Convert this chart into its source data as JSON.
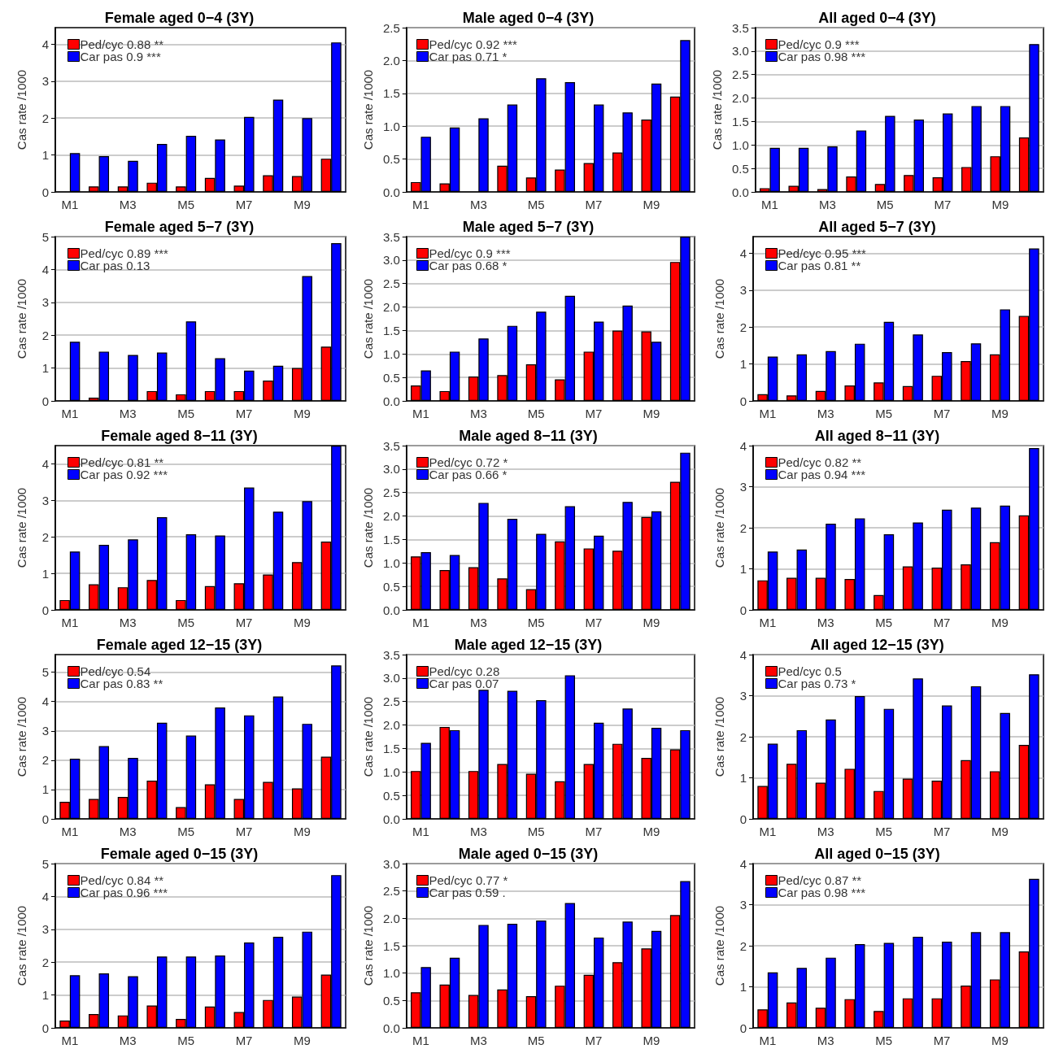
{
  "chart_data": [
    {
      "type": "bar",
      "title": "Female aged 0−4 (3Y)",
      "ylabel": "Cas rate /1000",
      "categories": [
        "M1",
        null,
        "M3",
        null,
        "M5",
        null,
        "M7",
        null,
        "M9",
        null
      ],
      "ylim": [
        0,
        4.45
      ],
      "yticks": [
        0,
        1,
        2,
        3,
        4
      ],
      "grid": "y",
      "legend": "top left",
      "series": [
        {
          "name": "Ped/cyc 0.88 **",
          "color": "#ff0000",
          "values": [
            null,
            0.15,
            0.15,
            0.25,
            0.15,
            0.38,
            0.17,
            0.45,
            0.43,
            0.9
          ]
        },
        {
          "name": "Car pas 0.9 ***",
          "color": "#0000ff",
          "values": [
            1.05,
            0.97,
            0.84,
            1.3,
            1.52,
            1.42,
            2.03,
            2.5,
            2.0,
            4.05
          ]
        }
      ]
    },
    {
      "type": "bar",
      "title": "Male aged 0−4 (3Y)",
      "ylabel": "Cas rate /1000",
      "categories": [
        "M1",
        null,
        "M3",
        null,
        "M5",
        null,
        "M7",
        null,
        "M9",
        null
      ],
      "ylim": [
        0,
        2.5
      ],
      "yticks": [
        {
          "value": 0,
          "label": "0.0"
        },
        0.5,
        {
          "value": 1,
          "label": "1.0"
        },
        1.5,
        {
          "value": 2,
          "label": "2.0"
        },
        2.5
      ],
      "grid": "y",
      "legend": "top left",
      "series": [
        {
          "name": "Ped/cyc 0.92 ***",
          "color": "#ff0000",
          "values": [
            0.15,
            0.13,
            null,
            0.4,
            0.22,
            0.34,
            0.44,
            0.6,
            1.1,
            1.45
          ]
        },
        {
          "name": "Car pas 0.71 *",
          "color": "#0000ff",
          "values": [
            0.84,
            0.98,
            1.12,
            1.33,
            1.73,
            1.67,
            1.33,
            1.21,
            1.65,
            2.31
          ]
        }
      ]
    },
    {
      "type": "bar",
      "title": "All aged 0−4 (3Y)",
      "ylabel": "Cas rate /1000",
      "categories": [
        "M1",
        null,
        "M3",
        null,
        "M5",
        null,
        "M7",
        null,
        "M9",
        null
      ],
      "ylim": [
        0,
        3.5
      ],
      "yticks": [
        {
          "value": 0,
          "label": "0.0"
        },
        0.5,
        {
          "value": 1,
          "label": "1.0"
        },
        1.5,
        {
          "value": 2,
          "label": "2.0"
        },
        2.5,
        {
          "value": 3,
          "label": "3.0"
        },
        3.5
      ],
      "grid": "y",
      "legend": "top left",
      "series": [
        {
          "name": "Ped/cyc 0.9 ***",
          "color": "#ff0000",
          "values": [
            0.08,
            0.13,
            0.06,
            0.33,
            0.17,
            0.36,
            0.31,
            0.53,
            0.76,
            1.16
          ]
        },
        {
          "name": "Car pas 0.98 ***",
          "color": "#0000ff",
          "values": [
            0.94,
            0.94,
            0.97,
            1.31,
            1.62,
            1.54,
            1.67,
            1.83,
            1.83,
            3.15
          ]
        }
      ]
    },
    {
      "type": "bar",
      "title": "Female aged 5−7 (3Y)",
      "ylabel": "Cas rate /1000",
      "categories": [
        "M1",
        null,
        "M3",
        null,
        "M5",
        null,
        "M7",
        null,
        "M9",
        null
      ],
      "ylim": [
        0,
        5
      ],
      "yticks": [
        0,
        1,
        2,
        3,
        4,
        5
      ],
      "grid": "y",
      "legend": "top left",
      "series": [
        {
          "name": "Ped/cyc 0.89 ***",
          "color": "#ff0000",
          "values": [
            null,
            0.1,
            null,
            0.3,
            0.2,
            0.3,
            0.3,
            0.62,
            1.0,
            1.65
          ]
        },
        {
          "name": "Car pas 0.13",
          "color": "#0000ff",
          "values": [
            1.8,
            1.5,
            1.4,
            1.47,
            2.42,
            1.3,
            0.92,
            1.07,
            3.8,
            4.8
          ]
        }
      ]
    },
    {
      "type": "bar",
      "title": "Male aged 5−7 (3Y)",
      "ylabel": "Cas rate /1000",
      "categories": [
        "M1",
        null,
        "M3",
        null,
        "M5",
        null,
        "M7",
        null,
        "M9",
        null
      ],
      "ylim": [
        0,
        3.5
      ],
      "yticks": [
        {
          "value": 0,
          "label": "0.0"
        },
        0.5,
        {
          "value": 1,
          "label": "1.0"
        },
        1.5,
        {
          "value": 2,
          "label": "2.0"
        },
        2.5,
        {
          "value": 3,
          "label": "3.0"
        },
        3.5
      ],
      "grid": "y",
      "legend": "top left",
      "series": [
        {
          "name": "Ped/cyc 0.9 ***",
          "color": "#ff0000",
          "values": [
            0.33,
            0.21,
            0.52,
            0.55,
            0.78,
            0.46,
            1.05,
            1.5,
            1.48,
            2.96
          ]
        },
        {
          "name": "Car pas 0.68 *",
          "color": "#0000ff",
          "values": [
            0.65,
            1.05,
            1.33,
            1.6,
            1.9,
            2.24,
            1.69,
            2.03,
            1.26,
            3.5
          ]
        }
      ]
    },
    {
      "type": "bar",
      "title": "All aged 5−7 (3Y)",
      "ylabel": "Cas rate /1000",
      "categories": [
        "M1",
        null,
        "M3",
        null,
        "M5",
        null,
        "M7",
        null,
        "M9",
        null
      ],
      "ylim": [
        0,
        4.45
      ],
      "yticks": [
        0,
        1,
        2,
        3,
        4
      ],
      "grid": "y",
      "legend": "top left",
      "series": [
        {
          "name": "Ped/cyc 0.95 ***",
          "color": "#ff0000",
          "values": [
            0.18,
            0.15,
            0.27,
            0.42,
            0.5,
            0.4,
            0.68,
            1.08,
            1.26,
            2.3
          ]
        },
        {
          "name": "Car pas 0.81 **",
          "color": "#0000ff",
          "values": [
            1.2,
            1.26,
            1.35,
            1.55,
            2.14,
            1.8,
            1.32,
            1.56,
            2.48,
            4.13
          ]
        }
      ]
    },
    {
      "type": "bar",
      "title": "Female aged 8−11 (3Y)",
      "ylabel": "Cas rate /1000",
      "categories": [
        "M1",
        null,
        "M3",
        null,
        "M5",
        null,
        "M7",
        null,
        "M9",
        null
      ],
      "ylim": [
        0,
        4.5
      ],
      "yticks": [
        0,
        1,
        2,
        3,
        4
      ],
      "grid": "y",
      "legend": "top left",
      "series": [
        {
          "name": "Ped/cyc 0.81 **",
          "color": "#ff0000",
          "values": [
            0.27,
            0.7,
            0.62,
            0.82,
            0.27,
            0.65,
            0.73,
            0.97,
            1.31,
            1.87
          ]
        },
        {
          "name": "Car pas 0.92 ***",
          "color": "#0000ff",
          "values": [
            1.6,
            1.78,
            1.93,
            2.54,
            2.07,
            2.04,
            3.35,
            2.69,
            2.98,
            4.5
          ]
        }
      ]
    },
    {
      "type": "bar",
      "title": "Male aged 8−11 (3Y)",
      "ylabel": "Cas rate /1000",
      "categories": [
        "M1",
        null,
        "M3",
        null,
        "M5",
        null,
        "M7",
        null,
        "M9",
        null
      ],
      "ylim": [
        0,
        3.5
      ],
      "yticks": [
        {
          "value": 0,
          "label": "0.0"
        },
        0.5,
        {
          "value": 1,
          "label": "1.0"
        },
        1.5,
        {
          "value": 2,
          "label": "2.0"
        },
        2.5,
        {
          "value": 3,
          "label": "3.0"
        },
        3.5
      ],
      "grid": "y",
      "legend": "top left",
      "series": [
        {
          "name": "Ped/cyc 0.72 *",
          "color": "#ff0000",
          "values": [
            1.14,
            0.85,
            0.91,
            0.67,
            0.44,
            1.46,
            1.31,
            1.26,
            1.98,
            2.73
          ]
        },
        {
          "name": "Car pas 0.66 *",
          "color": "#0000ff",
          "values": [
            1.23,
            1.17,
            2.28,
            1.94,
            1.62,
            2.21,
            1.58,
            2.3,
            2.1,
            3.35
          ]
        }
      ]
    },
    {
      "type": "bar",
      "title": "All aged 8−11 (3Y)",
      "ylabel": "Cas rate /1000",
      "categories": [
        "M1",
        null,
        "M3",
        null,
        "M5",
        null,
        "M7",
        null,
        "M9",
        null
      ],
      "ylim": [
        0,
        4
      ],
      "yticks": [
        0,
        1,
        2,
        3,
        4
      ],
      "grid": "y",
      "legend": "top left",
      "series": [
        {
          "name": "Ped/cyc 0.82 **",
          "color": "#ff0000",
          "values": [
            0.72,
            0.78,
            0.78,
            0.75,
            0.36,
            1.06,
            1.03,
            1.11,
            1.65,
            2.3
          ]
        },
        {
          "name": "Car pas 0.94 ***",
          "color": "#0000ff",
          "values": [
            1.42,
            1.47,
            2.1,
            2.23,
            1.84,
            2.13,
            2.44,
            2.49,
            2.54,
            3.94
          ]
        }
      ]
    },
    {
      "type": "bar",
      "title": "Female aged 12−15 (3Y)",
      "ylabel": "Cas rate /1000",
      "categories": [
        "M1",
        null,
        "M3",
        null,
        "M5",
        null,
        "M7",
        null,
        "M9",
        null
      ],
      "ylim": [
        0,
        5.6
      ],
      "yticks": [
        0,
        1,
        2,
        3,
        4,
        5
      ],
      "grid": "y",
      "legend": "top left",
      "series": [
        {
          "name": "Ped/cyc 0.54",
          "color": "#ff0000",
          "values": [
            0.58,
            0.68,
            0.75,
            1.3,
            0.4,
            1.18,
            0.68,
            1.26,
            1.04,
            2.12
          ]
        },
        {
          "name": "Car pas 0.83 **",
          "color": "#0000ff",
          "values": [
            2.05,
            2.48,
            2.08,
            3.28,
            2.84,
            3.8,
            3.53,
            4.17,
            3.24,
            5.23
          ]
        }
      ]
    },
    {
      "type": "bar",
      "title": "Male aged 12−15 (3Y)",
      "ylabel": "Cas rate /1000",
      "categories": [
        "M1",
        null,
        "M3",
        null,
        "M5",
        null,
        "M7",
        null,
        "M9",
        null
      ],
      "ylim": [
        0,
        3.5
      ],
      "yticks": [
        {
          "value": 0,
          "label": "0.0"
        },
        0.5,
        {
          "value": 1,
          "label": "1.0"
        },
        1.5,
        {
          "value": 2,
          "label": "2.0"
        },
        2.5,
        {
          "value": 3,
          "label": "3.0"
        },
        3.5
      ],
      "grid": "y",
      "legend": "top left",
      "series": [
        {
          "name": "Ped/cyc 0.28",
          "color": "#ff0000",
          "values": [
            1.02,
            1.96,
            1.02,
            1.17,
            0.96,
            0.8,
            1.17,
            1.6,
            1.3,
            1.48
          ]
        },
        {
          "name": "Car pas 0.07",
          "color": "#0000ff",
          "values": [
            1.62,
            1.89,
            2.75,
            2.73,
            2.53,
            3.06,
            2.05,
            2.35,
            1.94,
            1.89
          ]
        }
      ]
    },
    {
      "type": "bar",
      "title": "All aged 12−15 (3Y)",
      "ylabel": "Cas rate /1000",
      "categories": [
        "M1",
        null,
        "M3",
        null,
        "M5",
        null,
        "M7",
        null,
        "M9",
        null
      ],
      "ylim": [
        0,
        4
      ],
      "yticks": [
        0,
        1,
        2,
        3,
        4
      ],
      "grid": "y",
      "legend": "top left",
      "series": [
        {
          "name": "Ped/cyc 0.5",
          "color": "#ff0000",
          "values": [
            0.8,
            1.34,
            0.88,
            1.22,
            0.68,
            0.98,
            0.93,
            1.43,
            1.16,
            1.8
          ]
        },
        {
          "name": "Car pas 0.73 *",
          "color": "#0000ff",
          "values": [
            1.83,
            2.16,
            2.42,
            2.99,
            2.68,
            3.42,
            2.76,
            3.23,
            2.58,
            3.52
          ]
        }
      ]
    },
    {
      "type": "bar",
      "title": "Female aged 0−15 (3Y)",
      "ylabel": "Cas rate /1000",
      "categories": [
        "M1",
        null,
        "M3",
        null,
        "M5",
        null,
        "M7",
        null,
        "M9",
        null
      ],
      "ylim": [
        0,
        5
      ],
      "yticks": [
        0,
        1,
        2,
        3,
        4,
        5
      ],
      "grid": "y",
      "legend": "top left",
      "series": [
        {
          "name": "Ped/cyc 0.84 **",
          "color": "#ff0000",
          "values": [
            0.22,
            0.42,
            0.38,
            0.68,
            0.27,
            0.65,
            0.48,
            0.85,
            0.95,
            1.62
          ]
        },
        {
          "name": "Car pas 0.96 ***",
          "color": "#0000ff",
          "values": [
            1.6,
            1.66,
            1.57,
            2.17,
            2.17,
            2.2,
            2.6,
            2.77,
            2.93,
            4.65
          ]
        }
      ]
    },
    {
      "type": "bar",
      "title": "Male aged 0−15 (3Y)",
      "ylabel": "Cas rate /1000",
      "categories": [
        "M1",
        null,
        "M3",
        null,
        "M5",
        null,
        "M7",
        null,
        "M9",
        null
      ],
      "ylim": [
        0,
        3
      ],
      "yticks": [
        {
          "value": 0,
          "label": "0.0"
        },
        0.5,
        {
          "value": 1,
          "label": "1.0"
        },
        1.5,
        {
          "value": 2,
          "label": "2.0"
        },
        2.5,
        {
          "value": 3,
          "label": "3.0"
        }
      ],
      "grid": "y",
      "legend": "top left",
      "series": [
        {
          "name": "Ped/cyc 0.77 *",
          "color": "#ff0000",
          "values": [
            0.65,
            0.79,
            0.6,
            0.7,
            0.58,
            0.77,
            0.97,
            1.2,
            1.45,
            2.06
          ]
        },
        {
          "name": "Car pas 0.59 .",
          "color": "#0000ff",
          "values": [
            1.11,
            1.28,
            1.88,
            1.9,
            1.96,
            2.28,
            1.65,
            1.94,
            1.77,
            2.68
          ]
        }
      ]
    },
    {
      "type": "bar",
      "title": "All aged 0−15 (3Y)",
      "ylabel": "Cas rate /1000",
      "categories": [
        "M1",
        null,
        "M3",
        null,
        "M5",
        null,
        "M7",
        null,
        "M9",
        null
      ],
      "ylim": [
        0,
        4
      ],
      "yticks": [
        0,
        1,
        2,
        3,
        4
      ],
      "grid": "y",
      "legend": "top left",
      "series": [
        {
          "name": "Ped/cyc 0.87 **",
          "color": "#ff0000",
          "values": [
            0.45,
            0.62,
            0.49,
            0.7,
            0.41,
            0.72,
            0.72,
            1.03,
            1.18,
            1.86
          ]
        },
        {
          "name": "Car pas 0.98 ***",
          "color": "#0000ff",
          "values": [
            1.35,
            1.46,
            1.71,
            2.04,
            2.07,
            2.22,
            2.1,
            2.33,
            2.33,
            3.63
          ]
        }
      ]
    }
  ]
}
